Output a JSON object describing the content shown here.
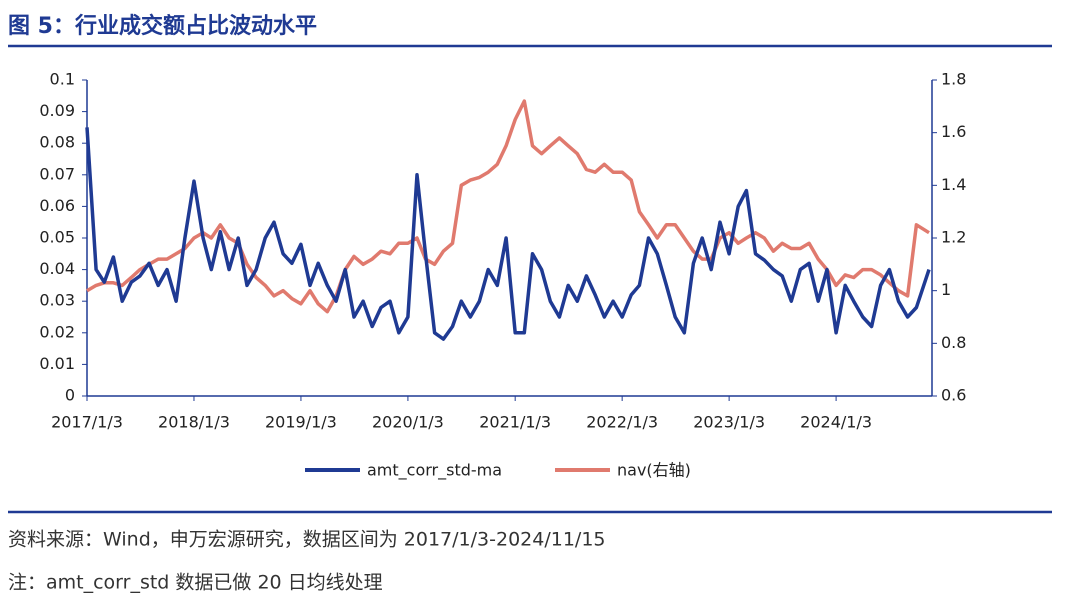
{
  "chart_data": {
    "type": "line",
    "title": "图 5：行业成交额占比波动水平",
    "source": "资料来源：Wind，申万宏源研究，数据区间为 2017/1/3-2024/11/15",
    "note": "注：amt_corr_std 数据已做 20 日均线处理",
    "x": [
      "2017/1/3",
      "2017/2/3",
      "2017/3/3",
      "2017/4/3",
      "2017/5/3",
      "2017/6/3",
      "2017/7/3",
      "2017/8/3",
      "2017/9/3",
      "2017/10/3",
      "2017/11/3",
      "2017/12/3",
      "2018/1/3",
      "2018/2/3",
      "2018/3/3",
      "2018/4/3",
      "2018/5/3",
      "2018/6/3",
      "2018/7/3",
      "2018/8/3",
      "2018/9/3",
      "2018/10/3",
      "2018/11/3",
      "2018/12/3",
      "2019/1/3",
      "2019/2/3",
      "2019/3/3",
      "2019/4/3",
      "2019/5/3",
      "2019/6/3",
      "2019/7/3",
      "2019/8/3",
      "2019/9/3",
      "2019/10/3",
      "2019/11/3",
      "2019/12/3",
      "2020/1/3",
      "2020/2/3",
      "2020/3/3",
      "2020/4/3",
      "2020/5/3",
      "2020/6/3",
      "2020/7/3",
      "2020/8/3",
      "2020/9/3",
      "2020/10/3",
      "2020/11/3",
      "2020/12/3",
      "2021/1/3",
      "2021/2/3",
      "2021/3/3",
      "2021/4/3",
      "2021/5/3",
      "2021/6/3",
      "2021/7/3",
      "2021/8/3",
      "2021/9/3",
      "2021/10/3",
      "2021/11/3",
      "2021/12/3",
      "2022/1/3",
      "2022/2/3",
      "2022/3/3",
      "2022/4/3",
      "2022/5/3",
      "2022/6/3",
      "2022/7/3",
      "2022/8/3",
      "2022/9/3",
      "2022/10/3",
      "2022/11/3",
      "2022/12/3",
      "2023/1/3",
      "2023/2/3",
      "2023/3/3",
      "2023/4/3",
      "2023/5/3",
      "2023/6/3",
      "2023/7/3",
      "2023/8/3",
      "2023/9/3",
      "2023/10/3",
      "2023/11/3",
      "2023/12/3",
      "2024/1/3",
      "2024/2/3",
      "2024/3/3",
      "2024/4/3",
      "2024/5/3",
      "2024/6/3",
      "2024/7/3",
      "2024/8/3",
      "2024/9/3",
      "2024/10/3",
      "2024/11/15"
    ],
    "series": [
      {
        "name": "amt_corr_std-ma",
        "color": "#1f3a93",
        "values": [
          0.085,
          0.04,
          0.036,
          0.044,
          0.03,
          0.036,
          0.038,
          0.042,
          0.035,
          0.04,
          0.03,
          0.05,
          0.068,
          0.05,
          0.04,
          0.052,
          0.04,
          0.05,
          0.035,
          0.04,
          0.05,
          0.055,
          0.045,
          0.042,
          0.048,
          0.035,
          0.042,
          0.035,
          0.03,
          0.04,
          0.025,
          0.03,
          0.022,
          0.028,
          0.03,
          0.02,
          0.025,
          0.07,
          0.045,
          0.02,
          0.018,
          0.022,
          0.03,
          0.025,
          0.03,
          0.04,
          0.035,
          0.05,
          0.02,
          0.02,
          0.045,
          0.04,
          0.03,
          0.025,
          0.035,
          0.03,
          0.038,
          0.032,
          0.025,
          0.03,
          0.025,
          0.032,
          0.035,
          0.05,
          0.045,
          0.035,
          0.025,
          0.02,
          0.042,
          0.05,
          0.04,
          0.055,
          0.045,
          0.06,
          0.065,
          0.045,
          0.043,
          0.04,
          0.038,
          0.03,
          0.04,
          0.042,
          0.03,
          0.04,
          0.02,
          0.035,
          0.03,
          0.025,
          0.022,
          0.035,
          0.04,
          0.03,
          0.025,
          0.028,
          0.04
        ]
      },
      {
        "name": "nav(右轴)",
        "color": "#e07a6e",
        "axis": "y2",
        "values": [
          1.0,
          1.02,
          1.03,
          1.03,
          1.02,
          1.05,
          1.08,
          1.1,
          1.12,
          1.12,
          1.14,
          1.16,
          1.2,
          1.22,
          1.2,
          1.25,
          1.2,
          1.18,
          1.1,
          1.05,
          1.02,
          0.98,
          1.0,
          0.97,
          0.95,
          1.0,
          0.95,
          0.92,
          0.98,
          1.08,
          1.13,
          1.1,
          1.12,
          1.15,
          1.14,
          1.18,
          1.18,
          1.2,
          1.12,
          1.1,
          1.15,
          1.18,
          1.4,
          1.42,
          1.43,
          1.45,
          1.48,
          1.55,
          1.65,
          1.72,
          1.55,
          1.52,
          1.55,
          1.58,
          1.55,
          1.52,
          1.46,
          1.45,
          1.48,
          1.45,
          1.45,
          1.42,
          1.3,
          1.25,
          1.2,
          1.25,
          1.25,
          1.2,
          1.15,
          1.12,
          1.12,
          1.2,
          1.22,
          1.18,
          1.2,
          1.22,
          1.2,
          1.15,
          1.18,
          1.16,
          1.16,
          1.18,
          1.12,
          1.08,
          1.02,
          1.06,
          1.05,
          1.08,
          1.08,
          1.06,
          1.03,
          1.0,
          0.98,
          1.25,
          1.22
        ]
      }
    ],
    "xlim": [
      "2017/1/3",
      "2024/11/15"
    ],
    "xticks": [
      "2017/1/3",
      "2018/1/3",
      "2019/1/3",
      "2020/1/3",
      "2021/1/3",
      "2022/1/3",
      "2023/1/3",
      "2024/1/3"
    ],
    "ylim": [
      0,
      0.1
    ],
    "yticks": [
      0,
      0.01,
      0.02,
      0.03,
      0.04,
      0.05,
      0.06,
      0.07,
      0.08,
      0.09,
      0.1
    ],
    "y2lim": [
      0.6,
      1.8
    ],
    "y2ticks": [
      0.6,
      0.8,
      1,
      1.2,
      1.4,
      1.6,
      1.8
    ],
    "legend": "bottom"
  }
}
